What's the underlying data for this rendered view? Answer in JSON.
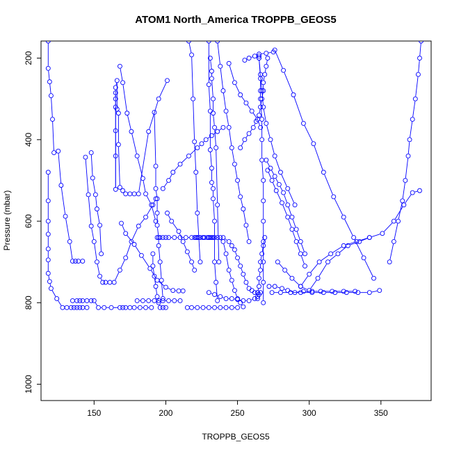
{
  "chart_data": {
    "type": "line",
    "title": "ATOM1 North_America TROPPB_GEOS5",
    "xlabel": "TROPPB_GEOS5",
    "ylabel": "Pressure (mbar)",
    "xlim": [
      113,
      385
    ],
    "ylim": [
      1040,
      158
    ],
    "y_reversed": true,
    "xticks": [
      150,
      200,
      250,
      300,
      350
    ],
    "yticks": [
      200,
      400,
      600,
      800,
      1000
    ],
    "series_color": "#0000ff",
    "marker": "open-circle",
    "series": [
      {
        "x": [
          118,
          118,
          119,
          120,
          121,
          122,
          125,
          127,
          130,
          133,
          135,
          137,
          139,
          142
        ],
        "y": [
          158,
          225,
          258,
          292,
          350,
          432,
          428,
          512,
          588,
          650,
          698,
          698,
          698,
          698
        ]
      },
      {
        "x": [
          118,
          118,
          118,
          118,
          118,
          118,
          118,
          119,
          120,
          124,
          128,
          131,
          134,
          136,
          138,
          140,
          142,
          145
        ],
        "y": [
          480,
          550,
          600,
          632,
          668,
          695,
          728,
          748,
          765,
          790,
          812,
          812,
          812,
          812,
          812,
          812,
          812,
          812
        ]
      },
      {
        "x": [
          135,
          138,
          140,
          142,
          145,
          148,
          150,
          153,
          157,
          162,
          168,
          170,
          172,
          175,
          178,
          182,
          186,
          190
        ],
        "y": [
          795,
          795,
          795,
          795,
          795,
          795,
          795,
          812,
          812,
          812,
          812,
          812,
          812,
          812,
          812,
          812,
          812,
          812
        ]
      },
      {
        "x": [
          144,
          146,
          148,
          150,
          152,
          154,
          156,
          158,
          161
        ],
        "y": [
          443,
          535,
          612,
          650,
          700,
          735,
          750,
          750,
          750
        ]
      },
      {
        "x": [
          148,
          149,
          151,
          152,
          154,
          155
        ],
        "y": [
          432,
          494,
          535,
          570,
          610,
          680
        ]
      },
      {
        "x": [
          165,
          165,
          165,
          165,
          165,
          165,
          165,
          166,
          166,
          167,
          167,
          168
        ],
        "y": [
          285,
          300,
          320,
          378,
          440,
          522,
          272,
          255,
          325,
          335,
          412,
          517
        ]
      },
      {
        "x": [
          168,
          170,
          173,
          176,
          180,
          184,
          186,
          190,
          193
        ],
        "y": [
          220,
          260,
          335,
          380,
          440,
          495,
          533,
          560,
          600
        ]
      },
      {
        "x": [
          170,
          172,
          175,
          178,
          181,
          188,
          195,
          201
        ],
        "y": [
          525,
          533,
          533,
          533,
          533,
          380,
          300,
          255
        ]
      },
      {
        "x": [
          169,
          172,
          178,
          183,
          189,
          194,
          200,
          205,
          209,
          212
        ],
        "y": [
          605,
          630,
          657,
          684,
          716,
          745,
          762,
          770,
          771,
          771
        ]
      },
      {
        "x": [
          164,
          168,
          172,
          176,
          181,
          186,
          191,
          193
        ],
        "y": [
          750,
          720,
          690,
          650,
          612,
          590,
          560,
          545
        ]
      },
      {
        "x": [
          192,
          193,
          193,
          194,
          194,
          194,
          195,
          195,
          196,
          197,
          198
        ],
        "y": [
          333,
          465,
          520,
          545,
          580,
          610,
          640,
          660,
          700,
          745,
          790
        ]
      },
      {
        "x": [
          191,
          191,
          192,
          193,
          194,
          195,
          196,
          198,
          200
        ],
        "y": [
          680,
          710,
          735,
          760,
          785,
          800,
          812,
          812,
          812
        ]
      },
      {
        "x": [
          180,
          184,
          188,
          192,
          195,
          198,
          202,
          206,
          210
        ],
        "y": [
          795,
          795,
          795,
          795,
          795,
          795,
          795,
          795,
          795
        ]
      },
      {
        "x": [
          194,
          196,
          198,
          200,
          202,
          206,
          210,
          214,
          218,
          222,
          226,
          230,
          234,
          238
        ],
        "y": [
          640,
          640,
          640,
          640,
          640,
          640,
          640,
          640,
          640,
          640,
          640,
          640,
          640,
          640
        ]
      },
      {
        "x": [
          198,
          202,
          205,
          210,
          216,
          222,
          225,
          228,
          232,
          236,
          240
        ],
        "y": [
          520,
          500,
          480,
          460,
          440,
          420,
          410,
          400,
          390,
          380,
          370
        ]
      },
      {
        "x": [
          201,
          204,
          209,
          212,
          215,
          218,
          220
        ],
        "y": [
          580,
          600,
          625,
          650,
          675,
          700,
          720
        ]
      },
      {
        "x": [
          215,
          218,
          222,
          226,
          230,
          234,
          238,
          242,
          246,
          250
        ],
        "y": [
          812,
          812,
          812,
          812,
          812,
          812,
          812,
          812,
          812,
          812
        ]
      },
      {
        "x": [
          220,
          221,
          222,
          224,
          226,
          227,
          229,
          230,
          231,
          232,
          233
        ],
        "y": [
          640,
          640,
          640,
          640,
          640,
          640,
          640,
          640,
          640,
          640,
          640
        ]
      },
      {
        "x": [
          216,
          218,
          219,
          220,
          221,
          222,
          223,
          224
        ],
        "y": [
          158,
          192,
          300,
          405,
          480,
          580,
          640,
          700
        ]
      },
      {
        "x": [
          230,
          230,
          231,
          231,
          232,
          232,
          233,
          233,
          234,
          234,
          235,
          236
        ],
        "y": [
          158,
          265,
          330,
          425,
          470,
          505,
          520,
          545,
          600,
          700,
          750,
          795
        ]
      },
      {
        "x": [
          231,
          232,
          232,
          233,
          233,
          234,
          235,
          236,
          237
        ],
        "y": [
          200,
          232,
          250,
          300,
          335,
          370,
          420,
          560,
          700
        ]
      },
      {
        "x": [
          236,
          238,
          240,
          242,
          244,
          246,
          248,
          250,
          252,
          254,
          256,
          258
        ],
        "y": [
          158,
          220,
          280,
          330,
          370,
          420,
          460,
          500,
          540,
          570,
          610,
          650
        ]
      },
      {
        "x": [
          244,
          248,
          252,
          256,
          260,
          264,
          266
        ],
        "y": [
          213,
          260,
          290,
          310,
          330,
          350,
          370
        ]
      },
      {
        "x": [
          236,
          240,
          242,
          244,
          246,
          248,
          250,
          252,
          254
        ],
        "y": [
          640,
          650,
          680,
          720,
          745,
          770,
          790,
          800,
          810
        ]
      },
      {
        "x": [
          230,
          234,
          238,
          242,
          246,
          250,
          254,
          258,
          262,
          264,
          265
        ],
        "y": [
          775,
          780,
          785,
          790,
          790,
          792,
          795,
          795,
          790,
          785,
          780
        ]
      },
      {
        "x": [
          240,
          244,
          246,
          248,
          250,
          252,
          254,
          256,
          258,
          260,
          262,
          264,
          266
        ],
        "y": [
          640,
          650,
          660,
          670,
          690,
          710,
          730,
          750,
          765,
          770,
          775,
          775,
          775
        ]
      },
      {
        "x": [
          252,
          255,
          258,
          261,
          263,
          265,
          266,
          267,
          268,
          268,
          269,
          270,
          271
        ],
        "y": [
          420,
          400,
          385,
          370,
          355,
          340,
          320,
          300,
          280,
          260,
          240,
          220,
          200
        ]
      },
      {
        "x": [
          265,
          265,
          266,
          266,
          266,
          267,
          267,
          267,
          268,
          268,
          268,
          268,
          268,
          268,
          268
        ],
        "y": [
          195,
          200,
          250,
          280,
          300,
          350,
          400,
          450,
          500,
          550,
          600,
          650,
          700,
          750,
          800
        ]
      },
      {
        "x": [
          264,
          264,
          265,
          265,
          266,
          266,
          267,
          268,
          269
        ],
        "y": [
          790,
          775,
          760,
          740,
          720,
          700,
          680,
          660,
          640
        ]
      },
      {
        "x": [
          265,
          266,
          267,
          268,
          270,
          273,
          276,
          280,
          285,
          290
        ],
        "y": [
          200,
          240,
          280,
          320,
          360,
          400,
          440,
          480,
          520,
          560
        ]
      },
      {
        "x": [
          270,
          273,
          276,
          279,
          282,
          285,
          288,
          291,
          294,
          297
        ],
        "y": [
          450,
          470,
          490,
          510,
          530,
          560,
          590,
          620,
          650,
          680
        ]
      },
      {
        "x": [
          271,
          274,
          277,
          281,
          285,
          288,
          291,
          294,
          297
        ],
        "y": [
          475,
          500,
          525,
          555,
          590,
          620,
          650,
          680,
          710
        ]
      },
      {
        "x": [
          272,
          276,
          281,
          285,
          290,
          296,
          302,
          308,
          316,
          324,
          332
        ],
        "y": [
          760,
          760,
          765,
          770,
          775,
          772,
          772,
          772,
          772,
          772,
          772
        ]
      },
      {
        "x": [
          274,
          280,
          287,
          294,
          302,
          310,
          318,
          326,
          334,
          342,
          349
        ],
        "y": [
          775,
          775,
          775,
          775,
          775,
          775,
          775,
          775,
          775,
          775,
          770
        ]
      },
      {
        "x": [
          276,
          282,
          289,
          296,
          303,
          310,
          317,
          324,
          331,
          338,
          345
        ],
        "y": [
          180,
          230,
          290,
          360,
          410,
          480,
          540,
          590,
          640,
          690,
          740
        ]
      },
      {
        "x": [
          278,
          283,
          288,
          294,
          300,
          306,
          313,
          320,
          327,
          335,
          342
        ],
        "y": [
          700,
          720,
          740,
          760,
          770,
          740,
          700,
          680,
          660,
          650,
          640
        ]
      },
      {
        "x": [
          294,
          300,
          307,
          315,
          324,
          333,
          342,
          351,
          359,
          366,
          372,
          377
        ],
        "y": [
          760,
          730,
          700,
          680,
          660,
          650,
          640,
          630,
          600,
          560,
          530,
          525
        ]
      },
      {
        "x": [
          356,
          359,
          362,
          365,
          367,
          369,
          370,
          372,
          374,
          376,
          377,
          378
        ],
        "y": [
          700,
          650,
          600,
          550,
          500,
          440,
          400,
          350,
          300,
          240,
          200,
          158
        ]
      },
      {
        "x": [
          255,
          258,
          262,
          265,
          270,
          275
        ],
        "y": [
          205,
          200,
          195,
          190,
          188,
          185
        ]
      }
    ]
  }
}
